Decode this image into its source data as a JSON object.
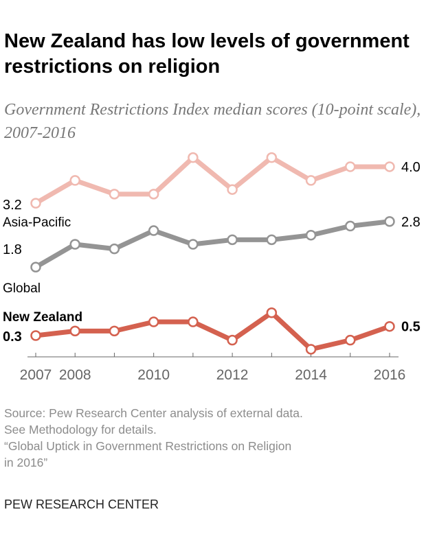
{
  "title": "New Zealand has low levels of government restrictions on religion",
  "subtitle": "Government Restrictions Index median scores (10-point scale), 2007-2016",
  "source_lines": [
    "Source: Pew Research Center analysis of external data.",
    "See Methodology for details.",
    "“Global Uptick in Government Restrictions on Religion",
    "in 2016”"
  ],
  "brand": "PEW RESEARCH CENTER",
  "chart_data": {
    "type": "line",
    "title": "New Zealand has low levels of government restrictions on religion",
    "subtitle": "Government Restrictions Index median scores (10-point scale), 2007-2016",
    "x": [
      2007,
      2008,
      2009,
      2010,
      2011,
      2012,
      2013,
      2014,
      2015,
      2016
    ],
    "xticks": [
      "2007",
      "2008",
      "2010",
      "2012",
      "2014",
      "2016"
    ],
    "grid": false,
    "series": [
      {
        "name": "Asia-Pacific",
        "color": "#f0b9b0",
        "values": [
          3.2,
          3.7,
          3.4,
          3.4,
          4.2,
          3.5,
          4.2,
          3.7,
          4.0,
          4.0
        ],
        "start_label": "3.2",
        "end_label": "4.0"
      },
      {
        "name": "Global",
        "color": "#949494",
        "values": [
          1.8,
          2.3,
          2.2,
          2.6,
          2.3,
          2.4,
          2.4,
          2.5,
          2.7,
          2.8
        ],
        "start_label": "1.8",
        "end_label": "2.8"
      },
      {
        "name": "New Zealand",
        "color": "#d4614f",
        "values": [
          0.3,
          0.4,
          0.4,
          0.6,
          0.6,
          0.2,
          0.8,
          0.0,
          0.2,
          0.5
        ],
        "start_label": "0.3",
        "end_label": "0.5"
      }
    ]
  }
}
